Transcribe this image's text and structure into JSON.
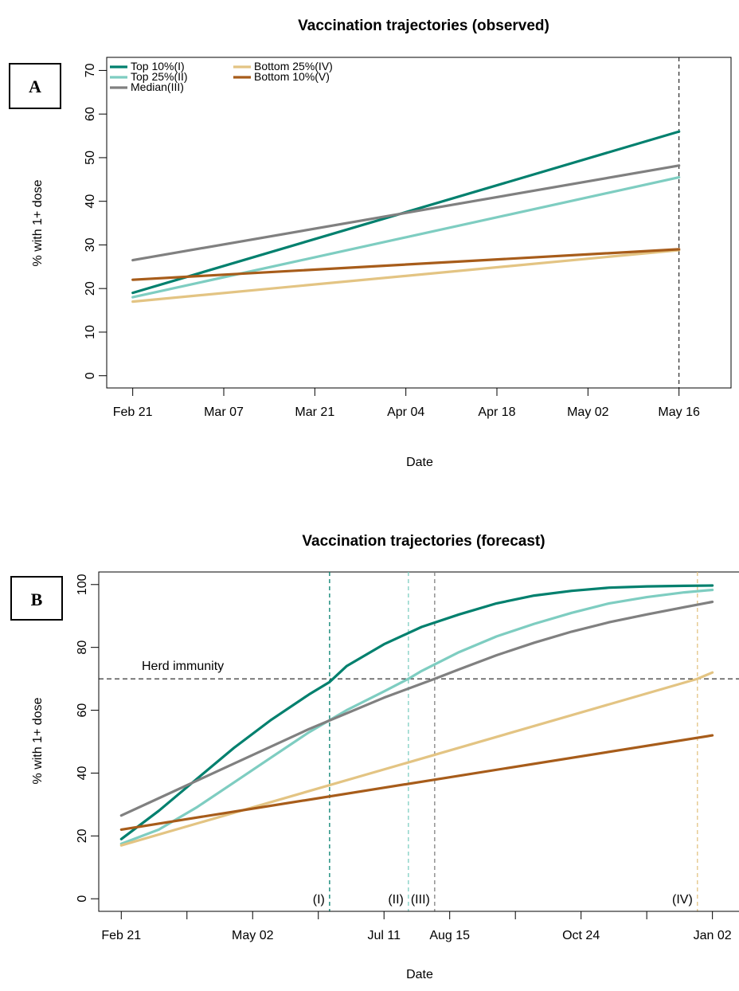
{
  "colors": {
    "top10": "#01806e",
    "top25": "#7ecdc1",
    "median": "#808080",
    "bottom25": "#e3c483",
    "bottom10": "#a75c1a"
  },
  "chart_data": [
    {
      "type": "line",
      "panel": "A",
      "title": "Vaccination trajectories (observed)",
      "xlabel": "Date",
      "ylabel": "% with 1+ dose",
      "x_ticks": [
        "Feb 21",
        "Mar 07",
        "Mar 21",
        "Apr 04",
        "Apr 18",
        "May 02",
        "May 16"
      ],
      "x_tick_days": [
        0,
        14,
        28,
        42,
        56,
        70,
        84
      ],
      "xlim": [
        -4,
        92
      ],
      "ylim": [
        -2.8,
        73
      ],
      "y_ticks": [
        0,
        10,
        20,
        30,
        40,
        50,
        60,
        70
      ],
      "vline_day": 84,
      "legend": [
        "Top 10%(I)",
        "Top 25%(II)",
        "Median(III)",
        "Bottom 25%(IV)",
        "Bottom 10%(V)"
      ],
      "series": [
        {
          "name": "Top 10%(I)",
          "color_key": "top10",
          "x": [
            0,
            84
          ],
          "y": [
            19,
            56
          ]
        },
        {
          "name": "Top 25%(II)",
          "color_key": "top25",
          "x": [
            0,
            84
          ],
          "y": [
            18,
            45.5
          ]
        },
        {
          "name": "Median(III)",
          "color_key": "median",
          "x": [
            0,
            84
          ],
          "y": [
            26.5,
            48.2
          ]
        },
        {
          "name": "Bottom 25%(IV)",
          "color_key": "bottom25",
          "x": [
            0,
            84
          ],
          "y": [
            17,
            28.8
          ]
        },
        {
          "name": "Bottom 10%(V)",
          "color_key": "bottom10",
          "x": [
            0,
            84
          ],
          "y": [
            22,
            29
          ]
        }
      ]
    },
    {
      "type": "line",
      "panel": "B",
      "title": "Vaccination trajectories (forecast)",
      "xlabel": "Date",
      "ylabel": "% with 1+ dose",
      "x_ticks": [
        "Feb 21",
        "May 02",
        "Jul 11",
        "Aug 15",
        "Oct 24",
        "Jan 02"
      ],
      "x_tick_days": [
        0,
        70,
        140,
        175,
        245,
        315
      ],
      "x_minor_tick_days": [
        35,
        105,
        210,
        280
      ],
      "xlim": [
        -12,
        330
      ],
      "ylim": [
        -4,
        104
      ],
      "y_ticks": [
        0,
        20,
        40,
        60,
        80,
        100
      ],
      "herd_immunity": {
        "label": "Herd immunity",
        "y": 70
      },
      "markers": [
        {
          "label": "(I)",
          "day": 111,
          "color_key": "top10"
        },
        {
          "label": "(II)",
          "day": 153,
          "color_key": "top25"
        },
        {
          "label": "(III)",
          "day": 167,
          "color_key": "median"
        },
        {
          "label": "(IV)",
          "day": 307,
          "color_key": "bottom25"
        }
      ],
      "series": [
        {
          "name": "Top 10%(I)",
          "color_key": "top10",
          "x": [
            0,
            20,
            40,
            60,
            80,
            100,
            111,
            120,
            140,
            160,
            180,
            200,
            220,
            240,
            260,
            280,
            300,
            315
          ],
          "y": [
            19,
            28,
            38,
            48,
            57,
            65,
            69,
            74,
            81,
            86.5,
            90.5,
            94,
            96.5,
            98,
            99,
            99.4,
            99.6,
            99.7
          ]
        },
        {
          "name": "Top 25%(II)",
          "color_key": "top25",
          "x": [
            0,
            20,
            40,
            60,
            80,
            100,
            120,
            140,
            153,
            160,
            180,
            200,
            220,
            240,
            260,
            280,
            300,
            315
          ],
          "y": [
            17.5,
            22,
            29,
            37,
            45,
            53,
            60,
            66,
            70,
            72.5,
            78.5,
            83.5,
            87.5,
            91,
            94,
            96,
            97.5,
            98.3
          ]
        },
        {
          "name": "Median(III)",
          "color_key": "median",
          "x": [
            0,
            20,
            40,
            60,
            80,
            100,
            120,
            140,
            167,
            180,
            200,
            220,
            240,
            260,
            280,
            300,
            315
          ],
          "y": [
            26.5,
            32,
            37.5,
            43,
            48.5,
            54,
            59,
            64,
            70,
            73,
            77.5,
            81.5,
            85,
            88,
            90.5,
            92.8,
            94.5
          ]
        },
        {
          "name": "Bottom 25%(IV)",
          "color_key": "bottom25",
          "x": [
            0,
            307,
            315
          ],
          "y": [
            17,
            70,
            72
          ]
        },
        {
          "name": "Bottom 10%(V)",
          "color_key": "bottom10",
          "x": [
            0,
            315
          ],
          "y": [
            22,
            52
          ]
        }
      ]
    }
  ]
}
